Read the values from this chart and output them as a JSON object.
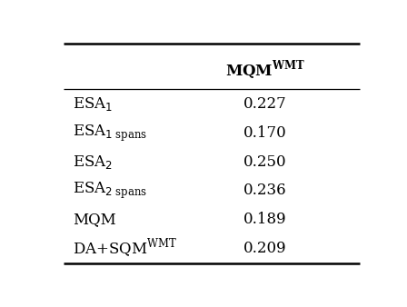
{
  "rows": [
    {
      "label_parts": [
        [
          "ESA",
          12,
          false
        ],
        [
          "1",
          9,
          true,
          false
        ]
      ],
      "value": "0.227"
    },
    {
      "label_parts": [
        [
          "ESA",
          12,
          false
        ],
        [
          "1 spans",
          8,
          true,
          false
        ]
      ],
      "value": "0.170"
    },
    {
      "label_parts": [
        [
          "ESA",
          12,
          false
        ],
        [
          "2",
          9,
          true,
          false
        ]
      ],
      "value": "0.250"
    },
    {
      "label_parts": [
        [
          "ESA",
          12,
          false
        ],
        [
          "2 spans",
          8,
          true,
          false
        ]
      ],
      "value": "0.236"
    },
    {
      "label_plain": "MQM",
      "value": "0.189"
    },
    {
      "label_plain": "DA+SQM",
      "label_super": "WMT",
      "value": "0.209"
    }
  ],
  "bg_color": "#ffffff",
  "text_color": "#000000",
  "fontsize": 12,
  "header_fontsize": 12
}
